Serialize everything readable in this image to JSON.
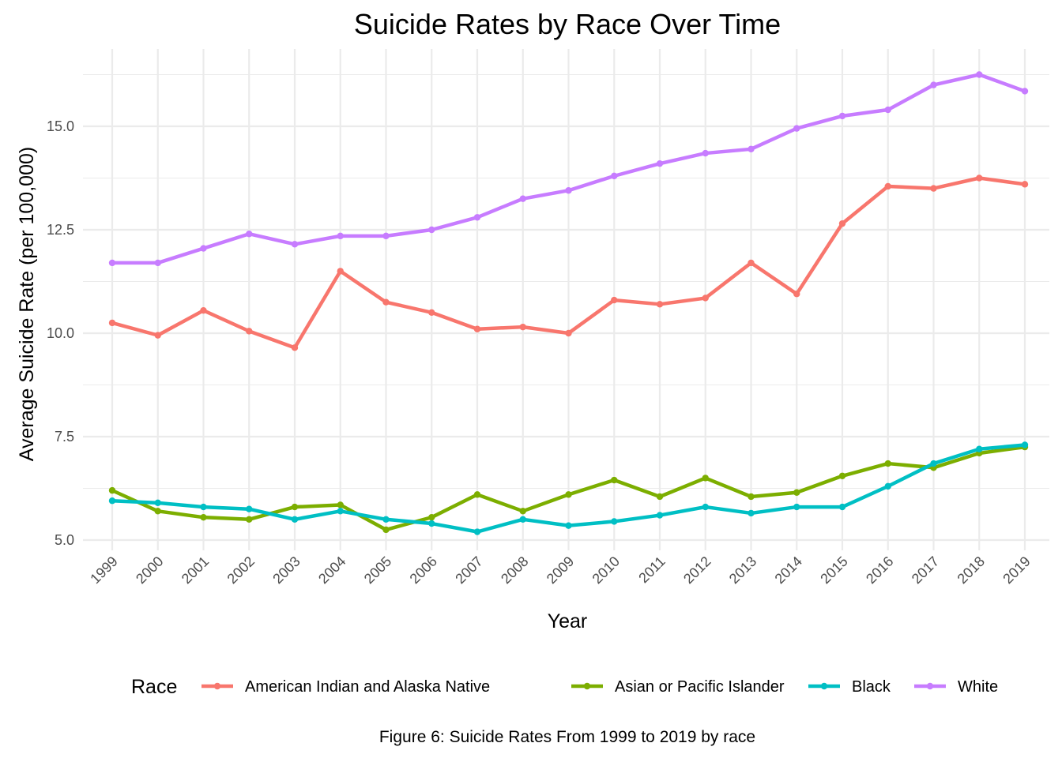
{
  "chart_data": {
    "type": "line",
    "title": "Suicide Rates by Race Over Time",
    "xlabel": "Year",
    "ylabel": "Average Suicide Rate (per 100,000)",
    "caption": "Figure 6: Suicide Rates From 1999 to 2019 by race",
    "legend_title": "Race",
    "legend_position": "bottom",
    "grid": true,
    "x": [
      "1999",
      "2000",
      "2001",
      "2002",
      "2003",
      "2004",
      "2005",
      "2006",
      "2007",
      "2008",
      "2009",
      "2010",
      "2011",
      "2012",
      "2013",
      "2014",
      "2015",
      "2016",
      "2017",
      "2018",
      "2019"
    ],
    "y_ticks": [
      "5.0",
      "7.5",
      "10.0",
      "12.5",
      "15.0"
    ],
    "y_tick_values": [
      5.0,
      7.5,
      10.0,
      12.5,
      15.0
    ],
    "ylim": [
      4.75,
      16.55
    ],
    "series": [
      {
        "name": "American Indian and Alaska Native",
        "color": "#F8766D",
        "values": [
          10.25,
          9.95,
          10.55,
          10.05,
          9.65,
          11.5,
          10.75,
          10.5,
          10.1,
          10.15,
          10.0,
          10.8,
          10.7,
          10.85,
          11.7,
          10.95,
          12.65,
          13.55,
          13.5,
          13.75,
          13.6
        ]
      },
      {
        "name": "Asian or Pacific Islander",
        "color": "#7CAE00",
        "values": [
          6.2,
          5.7,
          5.55,
          5.5,
          5.8,
          5.85,
          5.25,
          5.55,
          6.1,
          5.7,
          6.1,
          6.45,
          6.05,
          6.5,
          6.05,
          6.15,
          6.55,
          6.85,
          6.75,
          7.1,
          7.25
        ]
      },
      {
        "name": "Black",
        "color": "#00BFC4",
        "values": [
          5.95,
          5.9,
          5.8,
          5.75,
          5.5,
          5.7,
          5.5,
          5.4,
          5.2,
          5.5,
          5.35,
          5.45,
          5.6,
          5.8,
          5.65,
          5.8,
          5.8,
          6.3,
          6.85,
          7.2,
          7.3
        ]
      },
      {
        "name": "White",
        "color": "#C77CFF",
        "values": [
          11.7,
          11.7,
          12.05,
          12.4,
          12.15,
          12.35,
          12.35,
          12.5,
          12.8,
          13.25,
          13.45,
          13.8,
          14.1,
          14.35,
          14.45,
          14.95,
          15.25,
          15.4,
          16.0,
          16.25,
          15.85
        ]
      }
    ]
  }
}
